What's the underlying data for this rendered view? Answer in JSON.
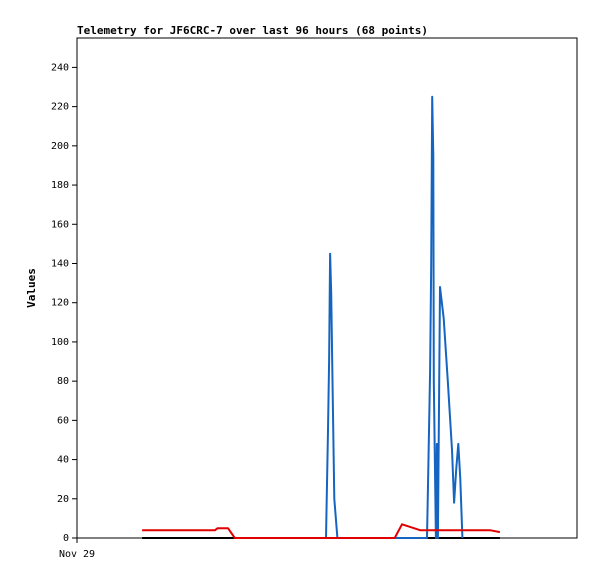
{
  "chart_data": {
    "type": "line",
    "title": "Telemetry for JF6CRC-7 over last 96 hours (68 points)",
    "ylabel": "Values",
    "xlim": [
      0,
      96
    ],
    "xticks": [
      {
        "value": 0,
        "label": "Nov 29"
      }
    ],
    "ylim": [
      0,
      255
    ],
    "yticks": [
      0,
      20,
      40,
      60,
      80,
      100,
      120,
      140,
      160,
      180,
      200,
      220,
      240
    ],
    "series": [
      {
        "color": "#000000",
        "x": [
          12.5,
          81.2
        ],
        "values": [
          0,
          0
        ]
      },
      {
        "color": "#1565c0",
        "x": [
          47.8,
          48.2,
          48.4,
          48.6,
          48.8,
          49.0,
          49.4,
          50.0,
          67.2,
          67.4,
          67.8,
          68.0,
          68.2,
          68.4,
          68.5,
          68.9,
          69.1,
          69.3,
          69.7,
          70.4,
          71.2,
          72.0,
          72.4,
          72.8,
          73.2,
          73.6,
          74.0
        ],
        "values": [
          0,
          55,
          90,
          145,
          125,
          90,
          20,
          0,
          0,
          27,
          85,
          140,
          225,
          195,
          80,
          0,
          48,
          0,
          128,
          112,
          80,
          45,
          18,
          35,
          48,
          30,
          0
        ]
      },
      {
        "color": "#e00000",
        "x": [
          12.5,
          26.5,
          27.0,
          29.0,
          30.3,
          61.0,
          62.4,
          65.9,
          79.3,
          81.2
        ],
        "values": [
          4,
          4,
          5,
          5,
          0,
          0,
          7,
          4,
          4,
          3
        ]
      }
    ]
  }
}
